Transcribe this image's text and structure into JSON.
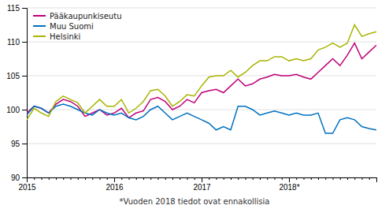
{
  "chart_data": {
    "type": "line",
    "categories": [
      "2015",
      null,
      null,
      null,
      null,
      null,
      null,
      null,
      null,
      null,
      null,
      null,
      "2016",
      null,
      null,
      null,
      null,
      null,
      null,
      null,
      null,
      null,
      null,
      null,
      "2017",
      null,
      null,
      null,
      null,
      null,
      null,
      null,
      null,
      null,
      null,
      null,
      "2018*",
      null,
      null,
      null,
      null,
      null,
      null,
      null,
      null,
      null,
      null,
      null,
      null
    ],
    "series": [
      {
        "name": "Pääkaupunkiseutu",
        "color": "#c0007a",
        "values": [
          99.5,
          100.5,
          100.2,
          99.5,
          100.8,
          101.5,
          101.2,
          100.5,
          99.0,
          99.5,
          100.0,
          99.2,
          99.5,
          100.2,
          98.8,
          99.5,
          99.8,
          101.5,
          101.8,
          101.2,
          100.0,
          100.5,
          101.5,
          101.0,
          102.5,
          102.8,
          103.0,
          102.5,
          103.5,
          104.5,
          103.5,
          103.8,
          104.5,
          104.8,
          105.2,
          105.0,
          105.0,
          105.2,
          104.8,
          104.5,
          105.5,
          106.5,
          107.5,
          106.5,
          108.0,
          109.8,
          107.5,
          108.5,
          109.5
        ]
      },
      {
        "name": "Muu Suomi",
        "color": "#0070c0",
        "values": [
          99.2,
          100.5,
          100.2,
          99.5,
          100.5,
          100.8,
          100.5,
          100.0,
          99.5,
          99.2,
          100.0,
          99.5,
          99.2,
          99.5,
          98.8,
          98.5,
          99.0,
          100.0,
          100.5,
          99.5,
          98.5,
          99.0,
          99.5,
          99.0,
          98.5,
          98.0,
          97.0,
          97.5,
          97.0,
          100.5,
          100.5,
          100.0,
          99.2,
          99.5,
          99.8,
          99.5,
          99.2,
          99.5,
          99.2,
          99.2,
          99.5,
          96.5,
          96.5,
          98.5,
          98.8,
          98.5,
          97.5,
          97.2,
          97.0
        ]
      },
      {
        "name": "Helsinki",
        "color": "#a8b400",
        "values": [
          98.5,
          100.2,
          99.5,
          99.0,
          101.2,
          102.0,
          101.5,
          101.0,
          99.5,
          100.5,
          101.5,
          100.5,
          100.5,
          101.5,
          99.5,
          100.2,
          101.2,
          102.8,
          103.0,
          102.0,
          100.5,
          101.2,
          102.2,
          102.0,
          103.5,
          104.8,
          105.0,
          105.0,
          105.8,
          104.8,
          105.5,
          106.5,
          107.2,
          107.2,
          107.8,
          107.8,
          107.2,
          107.5,
          107.2,
          107.5,
          108.8,
          109.2,
          109.8,
          109.2,
          109.8,
          112.5,
          110.8,
          111.2,
          111.5
        ]
      }
    ],
    "ylim": [
      90,
      115
    ],
    "yticks": [
      90,
      95,
      100,
      105,
      110,
      115
    ],
    "grid": true,
    "legend": "top-left",
    "annotations": [
      "*Vuoden 2018 tiedot ovat ennakollisia"
    ]
  }
}
